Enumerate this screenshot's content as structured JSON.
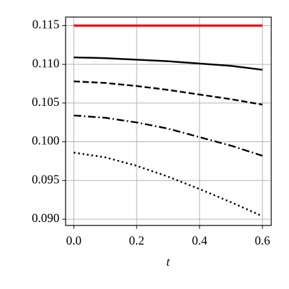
{
  "chart_data": {
    "type": "line",
    "x_label": "t",
    "x": [
      0,
      0.1,
      0.2,
      0.3,
      0.4,
      0.5,
      0.6
    ],
    "series": [
      {
        "color": "#e8141c",
        "style": "solid",
        "width": 3.5,
        "values": [
          0.115,
          0.115,
          0.115,
          0.115,
          0.115,
          0.115,
          0.115
        ]
      },
      {
        "color": "#000000",
        "style": "solid",
        "width": 2.5,
        "values": [
          0.1109,
          0.1108,
          0.1106,
          0.1104,
          0.1101,
          0.1098,
          0.1093
        ]
      },
      {
        "color": "#000000",
        "style": "dashed",
        "width": 2.5,
        "values": [
          0.1078,
          0.1076,
          0.1072,
          0.1067,
          0.1061,
          0.1055,
          0.1048
        ]
      },
      {
        "color": "#000000",
        "style": "dashdot",
        "width": 2.5,
        "values": [
          0.1034,
          0.1031,
          0.1025,
          0.1017,
          0.1006,
          0.0995,
          0.0982
        ]
      },
      {
        "color": "#000000",
        "style": "dotted",
        "width": 2.5,
        "values": [
          0.0986,
          0.098,
          0.0969,
          0.0955,
          0.0939,
          0.0922,
          0.0904
        ]
      }
    ],
    "xlim": [
      -0.026,
      0.628
    ],
    "ylim": [
      0.0892,
      0.1161
    ],
    "xticks": [
      {
        "value": 0,
        "label": "0.0"
      },
      {
        "value": 0.2,
        "label": "0.2"
      },
      {
        "value": 0.4,
        "label": "0.4"
      },
      {
        "value": 0.6,
        "label": "0.6"
      }
    ],
    "yticks": [
      {
        "value": 0.09,
        "label": "0.090"
      },
      0.095,
      {
        "value": 0.1,
        "label": "0.100"
      },
      0.105,
      {
        "value": 0.11,
        "label": "0.110"
      },
      0.115
    ],
    "grid": true
  }
}
